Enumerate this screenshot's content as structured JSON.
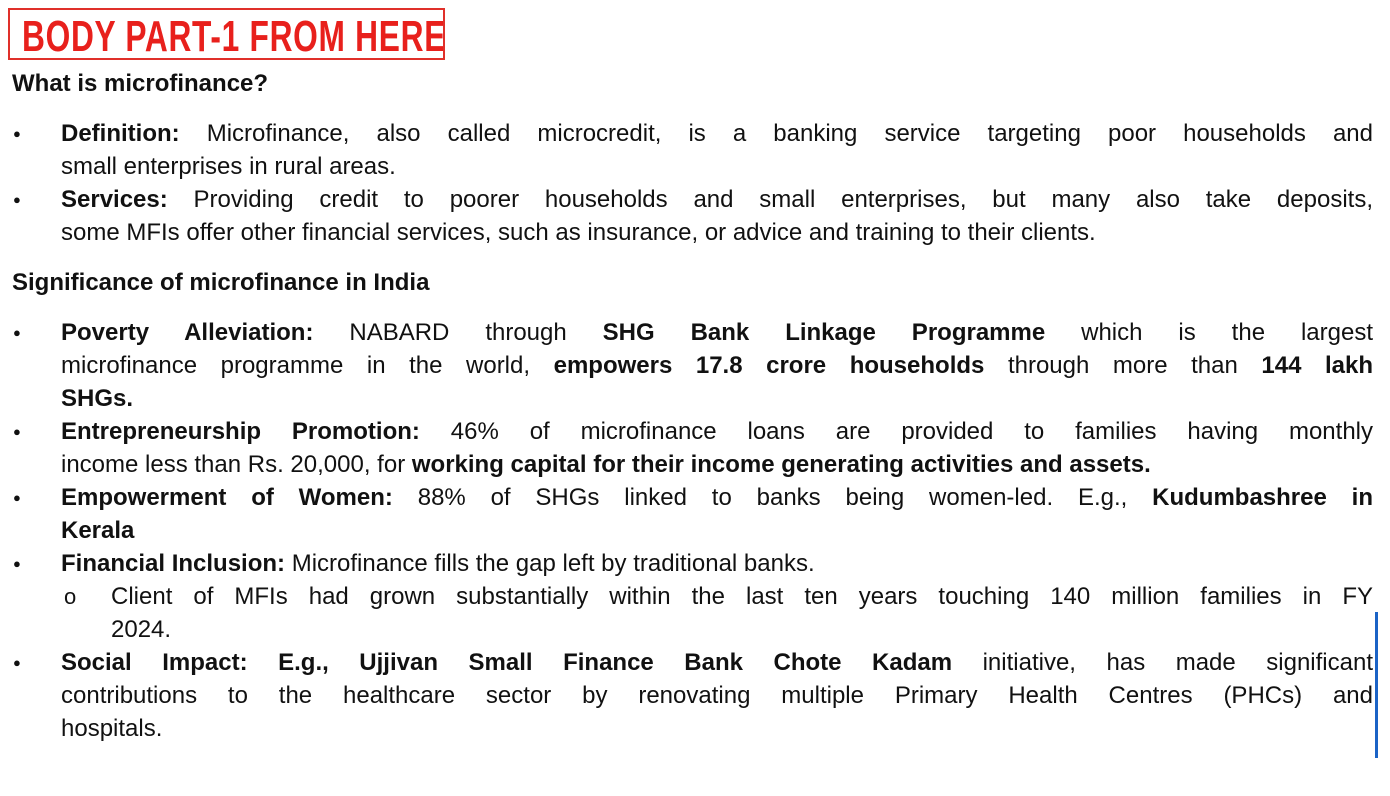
{
  "banner": "BODY PART-1 FROM HERE:",
  "blocks": [
    {
      "type": "heading",
      "text": "What is microfinance?"
    },
    {
      "type": "bullet",
      "lines": [
        [
          [
            "Definition:",
            true
          ],
          [
            " Microfinance, also called microcredit, is a banking service targeting poor households and",
            false
          ]
        ],
        [
          [
            "small enterprises in rural areas.",
            false
          ]
        ]
      ]
    },
    {
      "type": "bullet",
      "lines": [
        [
          [
            "Services:",
            true
          ],
          [
            " Providing credit to poorer households and small enterprises, but many also take deposits,",
            false
          ]
        ],
        [
          [
            "some MFIs offer other financial services, such as insurance, or advice and training to their clients.",
            false
          ]
        ]
      ]
    },
    {
      "type": "heading",
      "text": "Significance of microfinance in India"
    },
    {
      "type": "bullet",
      "lines": [
        [
          [
            "Poverty Alleviation:",
            true
          ],
          [
            " NABARD through ",
            false
          ],
          [
            "SHG Bank Linkage Programme",
            true
          ],
          [
            " which is the largest",
            false
          ]
        ],
        [
          [
            "microfinance programme in the world, ",
            false
          ],
          [
            "empowers 17.8 crore households",
            true
          ],
          [
            " through more than ",
            false
          ],
          [
            "144 lakh",
            true
          ]
        ],
        [
          [
            "SHGs.",
            true
          ]
        ]
      ]
    },
    {
      "type": "bullet",
      "lines": [
        [
          [
            "Entrepreneurship Promotion:",
            true
          ],
          [
            " 46% of microfinance loans are provided to families having monthly",
            false
          ]
        ],
        [
          [
            "income less than Rs. 20,000, for ",
            false
          ],
          [
            "working capital for their income generating activities and assets.",
            true
          ]
        ]
      ]
    },
    {
      "type": "bullet",
      "lines": [
        [
          [
            "Empowerment of Women:",
            true
          ],
          [
            " 88% of SHGs linked to banks being women-led. E.g., ",
            false
          ],
          [
            "Kudumbashree in",
            true
          ]
        ],
        [
          [
            "Kerala",
            true
          ]
        ]
      ]
    },
    {
      "type": "bullet",
      "lines": [
        [
          [
            "Financial Inclusion:",
            true
          ],
          [
            " Microfinance fills the gap left by traditional banks.",
            false
          ]
        ]
      ]
    },
    {
      "type": "subbullet",
      "lines": [
        [
          [
            "Client of MFIs had grown substantially within the last ten years touching 140 million families in FY",
            false
          ]
        ],
        [
          [
            "2024.",
            false
          ]
        ]
      ]
    },
    {
      "type": "bullet",
      "lines": [
        [
          [
            "Social Impact: E.g., Ujjivan Small Finance Bank Chote Kadam",
            true
          ],
          [
            " initiative, has made significant",
            false
          ]
        ],
        [
          [
            "contributions to the healthcare sector by renovating multiple Primary Health Centres (PHCs) and",
            false
          ]
        ],
        [
          [
            "hospitals.",
            false
          ]
        ]
      ]
    }
  ]
}
